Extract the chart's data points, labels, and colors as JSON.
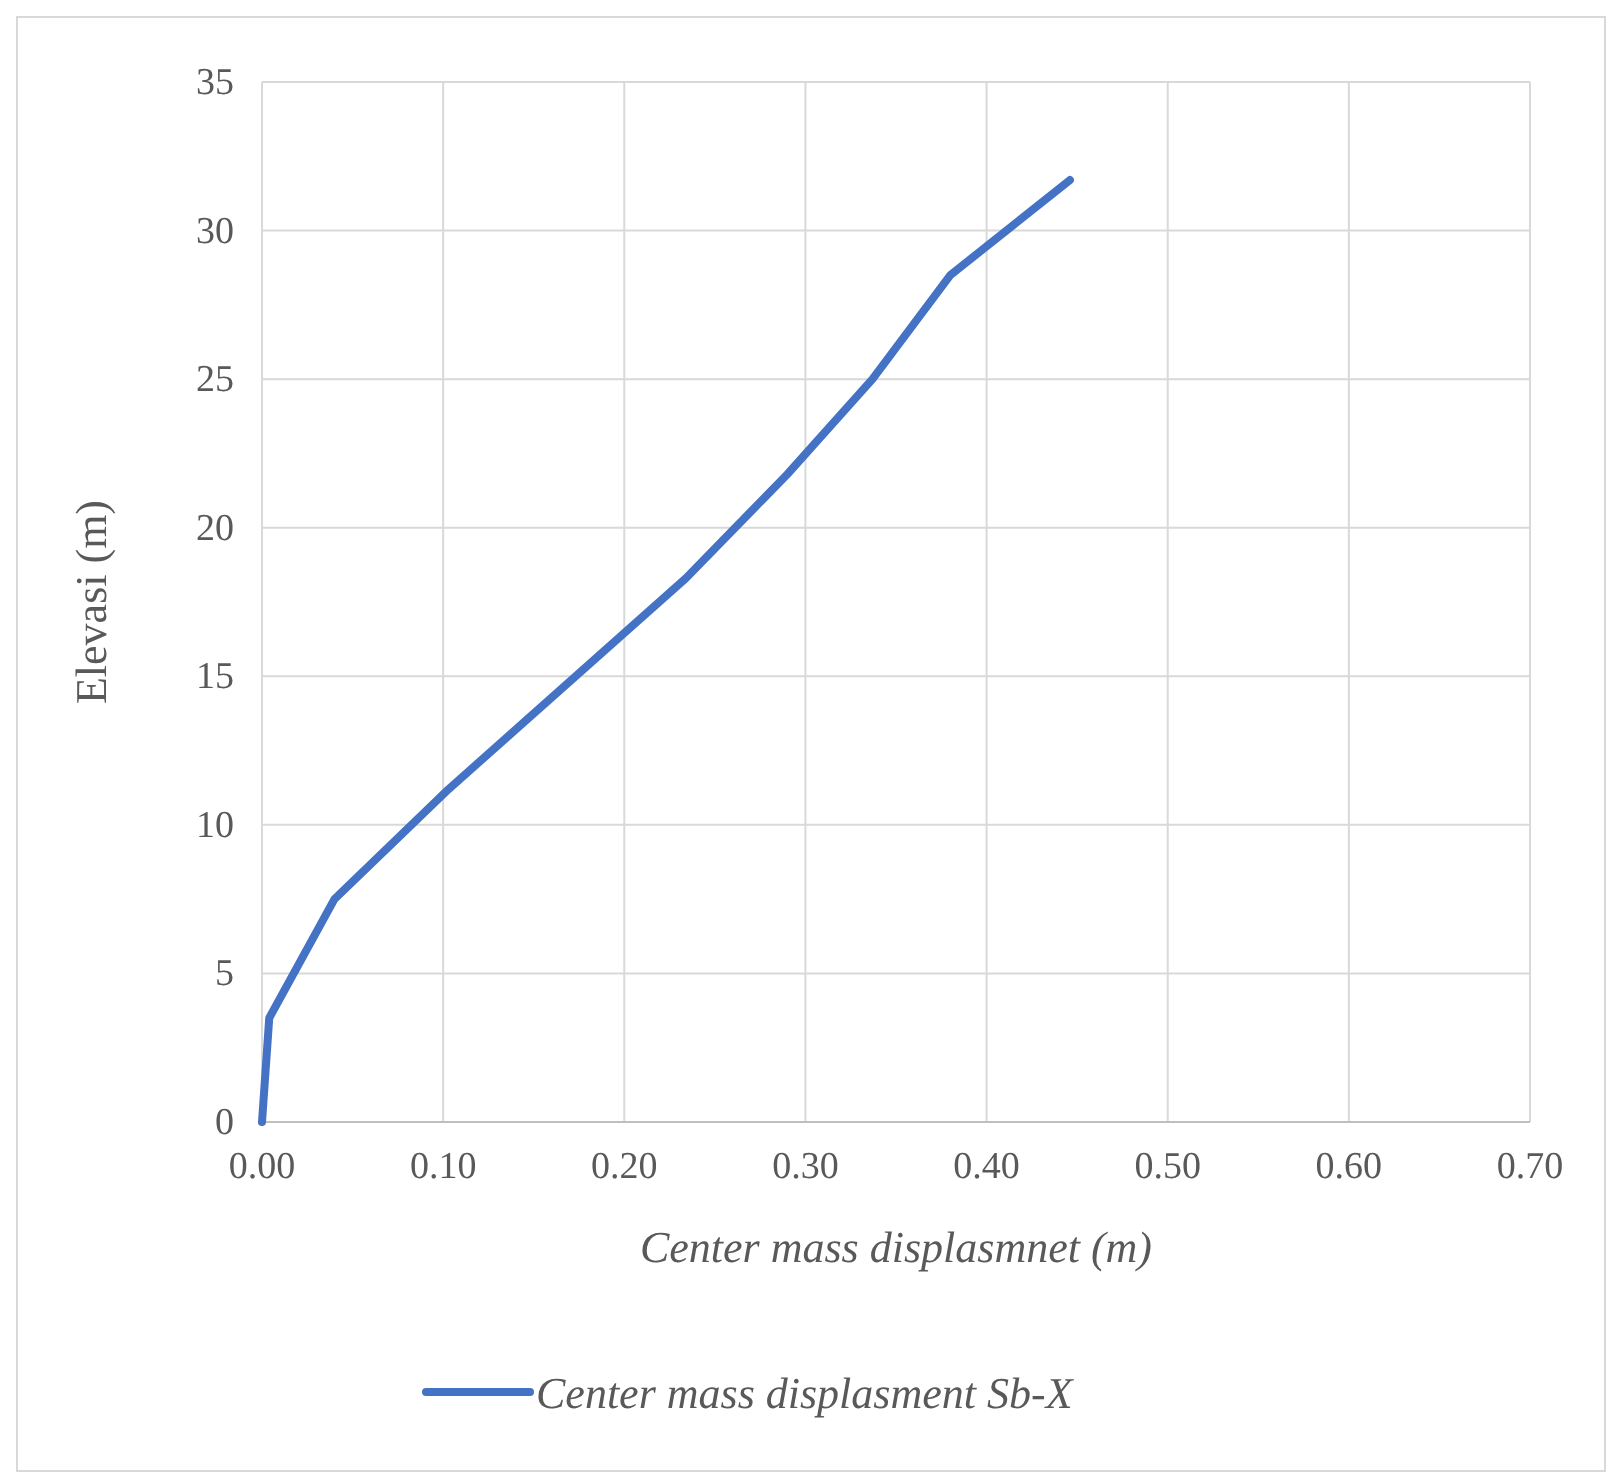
{
  "chart_data": {
    "type": "line",
    "xlabel": "Center mass displasmnet (m)",
    "ylabel": "Elevasi (m)",
    "x": [
      0,
      0.004,
      0.04,
      0.103,
      0.234,
      0.29,
      0.337,
      0.38,
      0.446
    ],
    "series": [
      {
        "name": "Center mass displasment Sb-X",
        "color": "#4472c4",
        "values": [
          0,
          3.5,
          7.5,
          11.2,
          18.3,
          21.8,
          25.0,
          28.5,
          31.7
        ]
      }
    ],
    "xlim": [
      0,
      0.7
    ],
    "xticks": [
      {
        "value": 0,
        "label": "0.00"
      },
      {
        "value": 0.1,
        "label": "0.10"
      },
      {
        "value": 0.2,
        "label": "0.20"
      },
      {
        "value": 0.3,
        "label": "0.30"
      },
      {
        "value": 0.4,
        "label": "0.40"
      },
      {
        "value": 0.5,
        "label": "0.50"
      },
      {
        "value": 0.6,
        "label": "0.60"
      },
      {
        "value": 0.7,
        "label": "0.70"
      }
    ],
    "ylim": [
      0,
      35
    ],
    "yticks": [
      0,
      5,
      10,
      15,
      20,
      25,
      30,
      35
    ],
    "grid": true,
    "legend": "bottom",
    "marker": "none",
    "line_style": "solid"
  }
}
